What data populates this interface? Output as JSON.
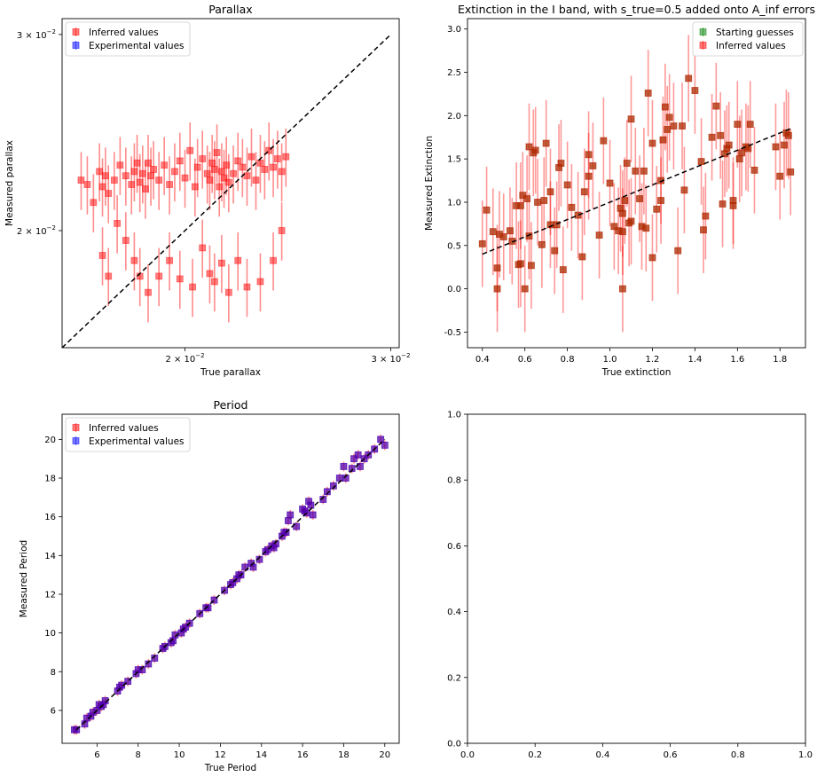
{
  "chart_data": [
    {
      "type": "scatter",
      "title": "Parallax",
      "xlabel": "True parallax",
      "ylabel": "Measured parallax",
      "xscale": "log",
      "yscale": "log",
      "xlim": [
        0.0157,
        0.0305
      ],
      "ylim": [
        0.0157,
        0.031
      ],
      "xticks": [
        {
          "value": 0.02,
          "label": "2 × 10",
          "exp": "−2"
        },
        {
          "value": 0.03,
          "label": "3 × 10",
          "exp": "−2"
        }
      ],
      "yticks": [
        {
          "value": 0.02,
          "label": "2 × 10",
          "exp": "−2"
        },
        {
          "value": 0.03,
          "label": "3 × 10",
          "exp": "−2"
        }
      ],
      "legend": "upper left",
      "series": [
        {
          "name": "Inferred values",
          "color": "#ff0000",
          "marker": "square",
          "alpha": 0.5,
          "x": [
            0.0163,
            0.0165,
            0.0167,
            0.0169,
            0.017,
            0.0171,
            0.0172,
            0.0174,
            0.0176,
            0.0178,
            0.018,
            0.0181,
            0.0182,
            0.0183,
            0.0184,
            0.0185,
            0.0186,
            0.0187,
            0.0188,
            0.019,
            0.0192,
            0.0194,
            0.0196,
            0.0198,
            0.02,
            0.0202,
            0.0204,
            0.0205,
            0.0207,
            0.0209,
            0.021,
            0.0211,
            0.0212,
            0.0213,
            0.0214,
            0.0215,
            0.0216,
            0.0217,
            0.0218,
            0.022,
            0.0222,
            0.0224,
            0.0226,
            0.0228,
            0.023,
            0.0232,
            0.0234,
            0.0236,
            0.0238,
            0.024,
            0.0242,
            0.0244,
            0.017,
            0.0172,
            0.0175,
            0.0178,
            0.0181,
            0.0183,
            0.0186,
            0.019,
            0.0194,
            0.0198,
            0.0203,
            0.0207,
            0.021,
            0.0212,
            0.0215,
            0.0218,
            0.0222,
            0.0226,
            0.0232,
            0.0238,
            0.0242
          ],
          "y": [
            0.0222,
            0.022,
            0.0212,
            0.0226,
            0.0219,
            0.0224,
            0.0216,
            0.0222,
            0.0229,
            0.0224,
            0.022,
            0.0226,
            0.023,
            0.0221,
            0.0225,
            0.0218,
            0.023,
            0.0224,
            0.0227,
            0.0222,
            0.0229,
            0.022,
            0.0226,
            0.0231,
            0.0223,
            0.0236,
            0.0219,
            0.0228,
            0.0232,
            0.0225,
            0.0222,
            0.023,
            0.0227,
            0.0235,
            0.0219,
            0.0226,
            0.0223,
            0.0229,
            0.0221,
            0.0225,
            0.0231,
            0.0228,
            0.0224,
            0.0233,
            0.0222,
            0.023,
            0.0227,
            0.0236,
            0.0228,
            0.0232,
            0.0226,
            0.0233,
            0.019,
            0.0182,
            0.0203,
            0.0196,
            0.0188,
            0.0182,
            0.0176,
            0.0182,
            0.0188,
            0.0181,
            0.0178,
            0.0193,
            0.0183,
            0.018,
            0.0187,
            0.0176,
            0.0188,
            0.0178,
            0.018,
            0.0188,
            0.02
          ],
          "yerr_rel": 0.06
        },
        {
          "name": "Experimental values",
          "color": "#0000ff",
          "marker": "square",
          "alpha": 0.5,
          "x": [],
          "y": []
        }
      ],
      "reference_line": "y = x"
    },
    {
      "type": "scatter",
      "title": "Extinction in the I band, with s_true=0.5 added onto A_inf errors",
      "xlabel": "True extinction",
      "ylabel": "Measured Extinction",
      "xlim": [
        0.33,
        1.92
      ],
      "ylim": [
        -0.68,
        3.12
      ],
      "xticks": [
        0.4,
        0.6,
        0.8,
        1.0,
        1.2,
        1.4,
        1.6,
        1.8
      ],
      "yticks": [
        -0.5,
        0.0,
        0.5,
        1.0,
        1.5,
        2.0,
        2.5,
        3.0
      ],
      "tick_format": "fixed1",
      "legend": "upper right",
      "series": [
        {
          "name": "Starting guesses",
          "color": "#008000",
          "marker": "square",
          "alpha": 0.5
        },
        {
          "name": "Inferred values",
          "color": "#ff0000",
          "marker": "square",
          "alpha": 0.5
        }
      ],
      "points": {
        "x": [
          0.4,
          0.42,
          0.45,
          0.47,
          0.48,
          0.5,
          0.53,
          0.54,
          0.57,
          0.58,
          0.59,
          0.6,
          0.61,
          0.62,
          0.63,
          0.65,
          0.66,
          0.68,
          0.7,
          0.72,
          0.74,
          0.76,
          0.77,
          0.78,
          0.8,
          0.82,
          0.85,
          0.87,
          0.88,
          0.9,
          0.92,
          0.95,
          0.97,
          1.0,
          1.02,
          1.04,
          1.05,
          1.06,
          1.07,
          1.08,
          1.09,
          1.1,
          1.12,
          1.14,
          1.15,
          1.17,
          1.18,
          1.2,
          1.22,
          1.24,
          1.25,
          1.26,
          1.27,
          1.28,
          1.3,
          1.32,
          1.35,
          1.37,
          1.4,
          1.43,
          1.45,
          1.48,
          1.5,
          1.52,
          1.54,
          1.55,
          1.56,
          1.58,
          1.6,
          1.62,
          1.64,
          1.66,
          1.68,
          1.8,
          1.82,
          1.84,
          0.56,
          0.62,
          0.72,
          0.9,
          1.06,
          1.1,
          1.24,
          1.44,
          1.58,
          1.61,
          1.65,
          1.78,
          1.83,
          1.85,
          1.06,
          0.47,
          0.58,
          0.69,
          1.16,
          1.53,
          0.75,
          1.34,
          1.2,
          0.64
        ],
        "y": [
          0.52,
          0.91,
          0.66,
          0.24,
          0.63,
          0.6,
          0.67,
          0.55,
          0.28,
          0.96,
          1.08,
          0.0,
          1.04,
          0.61,
          0.27,
          1.6,
          1.0,
          0.51,
          1.68,
          1.12,
          0.44,
          1.4,
          1.45,
          0.22,
          1.2,
          0.94,
          0.85,
          0.37,
          1.12,
          1.3,
          1.42,
          0.62,
          1.71,
          1.22,
          0.72,
          0.67,
          0.93,
          0.0,
          1.02,
          1.45,
          0.76,
          1.96,
          1.36,
          1.04,
          0.72,
          0.7,
          2.26,
          1.68,
          0.92,
          1.02,
          1.72,
          2.1,
          1.84,
          1.98,
          1.88,
          0.44,
          1.14,
          2.43,
          2.29,
          1.47,
          0.84,
          1.75,
          2.11,
          1.77,
          1.56,
          1.62,
          1.66,
          1.02,
          1.9,
          1.57,
          1.64,
          1.9,
          1.37,
          1.3,
          1.66,
          1.77,
          0.96,
          1.64,
          0.74,
          1.55,
          0.87,
          0.78,
          1.25,
          0.68,
          0.96,
          1.5,
          1.62,
          1.64,
          1.8,
          1.35,
          0.66,
          0.0,
          0.29,
          1.02,
          1.36,
          0.98,
          0.74,
          1.88,
          0.36,
          1.57
        ],
        "yerr": 0.5
      },
      "reference_line": "y = x"
    },
    {
      "type": "scatter",
      "title": "Period",
      "xlabel": "True Period",
      "ylabel": "Measured Period",
      "xlim": [
        4.3,
        20.7
      ],
      "ylim": [
        4.3,
        21.3
      ],
      "xticks": [
        6,
        8,
        10,
        12,
        14,
        16,
        18,
        20
      ],
      "yticks": [
        6,
        8,
        10,
        12,
        14,
        16,
        18,
        20
      ],
      "legend": "upper left",
      "series": [
        {
          "name": "Inferred values",
          "color": "#ff0000",
          "marker": "square",
          "alpha": 0.5
        },
        {
          "name": "Experimental values",
          "color": "#0000ff",
          "marker": "square",
          "alpha": 0.5
        }
      ],
      "points": {
        "x": [
          4.9,
          5.0,
          5.4,
          5.5,
          5.7,
          5.8,
          6.0,
          6.1,
          6.2,
          6.3,
          6.4,
          7.0,
          7.1,
          7.2,
          7.5,
          7.9,
          8.0,
          8.2,
          8.5,
          8.8,
          9.2,
          9.3,
          9.6,
          9.7,
          9.8,
          10.1,
          10.2,
          10.3,
          10.5,
          11.0,
          11.3,
          11.4,
          11.7,
          12.2,
          12.5,
          12.6,
          12.8,
          12.9,
          13.0,
          13.2,
          13.5,
          13.6,
          13.9,
          14.2,
          14.3,
          14.5,
          14.6,
          14.7,
          15.0,
          15.1,
          15.2,
          15.3,
          15.4,
          15.7,
          16.0,
          16.1,
          16.2,
          16.3,
          16.4,
          16.5,
          17.0,
          17.2,
          17.5,
          17.8,
          18.0,
          18.1,
          18.4,
          18.5,
          18.7,
          18.8,
          19.0,
          19.2,
          19.5,
          19.8,
          20.0
        ],
        "y": [
          5.0,
          5.0,
          5.3,
          5.6,
          5.7,
          5.9,
          6.0,
          6.3,
          6.2,
          6.3,
          6.5,
          7.0,
          7.2,
          7.3,
          7.5,
          7.9,
          8.1,
          8.1,
          8.4,
          8.7,
          9.2,
          9.3,
          9.5,
          9.6,
          9.9,
          10.0,
          10.2,
          10.3,
          10.5,
          11.0,
          11.3,
          11.3,
          11.7,
          12.2,
          12.5,
          12.6,
          12.8,
          13.0,
          13.0,
          13.4,
          13.6,
          13.4,
          13.8,
          14.2,
          14.3,
          14.5,
          14.4,
          14.6,
          15.0,
          15.2,
          15.2,
          15.8,
          16.1,
          15.5,
          16.4,
          16.3,
          16.2,
          16.8,
          16.6,
          16.1,
          16.9,
          17.3,
          17.6,
          18.0,
          18.6,
          18.0,
          18.5,
          19.0,
          19.2,
          18.6,
          19.0,
          19.2,
          19.5,
          20.0,
          19.7
        ],
        "yerr": 0.25
      },
      "reference_line": "y = x"
    },
    {
      "type": "empty",
      "xlim": [
        0,
        1
      ],
      "ylim": [
        0,
        1
      ],
      "xticks": [
        0.0,
        0.2,
        0.4,
        0.6,
        0.8,
        1.0
      ],
      "yticks": [
        0.0,
        0.2,
        0.4,
        0.6,
        0.8,
        1.0
      ],
      "tick_format": "fixed1"
    }
  ]
}
